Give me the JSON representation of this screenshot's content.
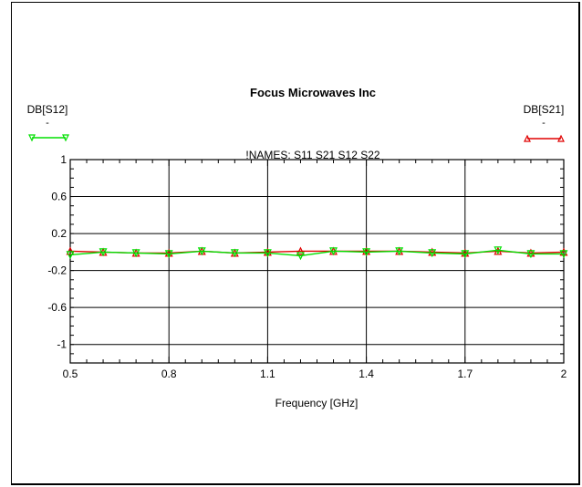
{
  "chart_data": {
    "type": "line",
    "title": "Focus Microwaves Inc",
    "subtitle": "!NAMES: S11 S21 S12 S22",
    "xlabel": "Frequency [GHz]",
    "ylabel": "",
    "xlim": [
      0.5,
      2.0
    ],
    "ylim": [
      -1.2,
      1.0
    ],
    "x_ticks": [
      "0.5",
      "0.8",
      "1.1",
      "1.4",
      "1.7",
      "2"
    ],
    "y_ticks": [
      "1",
      "0.6",
      "0.2",
      "-0.2",
      "-0.6",
      "-1"
    ],
    "grid": true,
    "legend": [
      {
        "name": "DB[S12]",
        "sub": "-",
        "position": "top-left"
      },
      {
        "name": "DB[S21]",
        "sub": "-",
        "position": "top-right"
      }
    ],
    "x": [
      0.5,
      0.6,
      0.7,
      0.8,
      0.9,
      1.0,
      1.1,
      1.2,
      1.3,
      1.4,
      1.5,
      1.6,
      1.7,
      1.8,
      1.9,
      2.0
    ],
    "series": [
      {
        "name": "DB[S21]",
        "color": "#e00000",
        "marker": "triangle-up",
        "values": [
          0.01,
          0.0,
          -0.01,
          -0.01,
          0.01,
          -0.01,
          0.0,
          0.01,
          0.01,
          0.01,
          0.01,
          0.0,
          -0.01,
          0.01,
          -0.01,
          0.0
        ]
      },
      {
        "name": "DB[S12]",
        "color": "#00e000",
        "marker": "triangle-down",
        "values": [
          -0.03,
          0.0,
          -0.01,
          -0.02,
          0.01,
          -0.01,
          -0.01,
          -0.04,
          0.01,
          0.0,
          0.01,
          -0.01,
          -0.02,
          0.02,
          -0.02,
          -0.02
        ]
      }
    ]
  }
}
